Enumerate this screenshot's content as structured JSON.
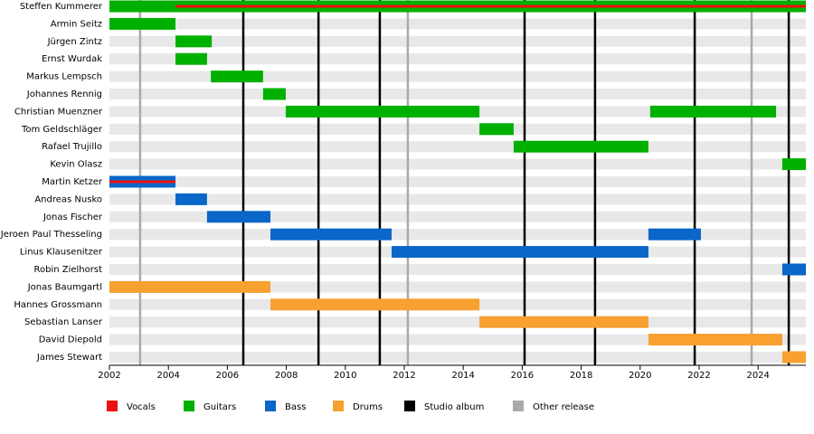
{
  "chart_data": {
    "type": "timeline",
    "xlim": [
      2002,
      2025.62
    ],
    "xticks": [
      2002,
      2004,
      2006,
      2008,
      2010,
      2012,
      2014,
      2016,
      2018,
      2020,
      2022,
      2024
    ],
    "legend": [
      {
        "name": "Vocals",
        "color": "#ee1111"
      },
      {
        "name": "Guitars",
        "color": "#00b000"
      },
      {
        "name": "Bass",
        "color": "#0a66c8"
      },
      {
        "name": "Drums",
        "color": "#f8a030"
      }
    ],
    "events": [
      {
        "name": "Studio album",
        "color": "#000000",
        "years": [
          2006.54,
          2009.09,
          2011.17,
          2016.08,
          2018.47,
          2021.85,
          2025.04
        ]
      },
      {
        "name": "Other release",
        "color": "#aaaaaa",
        "years": [
          2003.04,
          2012.12,
          2023.78
        ]
      }
    ],
    "members": [
      {
        "name": "Steffen Kummerer",
        "spans": [
          {
            "role": 1,
            "start": 2002,
            "end": 2025.62
          },
          {
            "role": 0,
            "start": 2004.24,
            "end": 2025.62
          }
        ]
      },
      {
        "name": "Armin Seitz",
        "spans": [
          {
            "role": 1,
            "start": 2002,
            "end": 2004.24
          }
        ]
      },
      {
        "name": "Jürgen Zintz",
        "spans": [
          {
            "role": 1,
            "start": 2004.24,
            "end": 2005.47
          }
        ]
      },
      {
        "name": "Ernst Wurdak",
        "spans": [
          {
            "role": 1,
            "start": 2004.24,
            "end": 2005.31
          }
        ]
      },
      {
        "name": "Markus Lempsch",
        "spans": [
          {
            "role": 1,
            "start": 2005.44,
            "end": 2007.21
          }
        ]
      },
      {
        "name": "Johannes Rennig",
        "spans": [
          {
            "role": 1,
            "start": 2007.21,
            "end": 2007.98
          }
        ]
      },
      {
        "name": "Christian Muenzner",
        "spans": [
          {
            "role": 1,
            "start": 2007.98,
            "end": 2014.55
          },
          {
            "role": 1,
            "start": 2020.34,
            "end": 2024.61
          }
        ]
      },
      {
        "name": "Tom Geldschläger",
        "spans": [
          {
            "role": 1,
            "start": 2014.55,
            "end": 2015.71
          }
        ]
      },
      {
        "name": "Rafael Trujillo",
        "spans": [
          {
            "role": 1,
            "start": 2015.71,
            "end": 2020.28
          }
        ]
      },
      {
        "name": "Kevin Olasz",
        "spans": [
          {
            "role": 1,
            "start": 2024.82,
            "end": 2025.62
          }
        ]
      },
      {
        "name": "Martin Ketzer",
        "spans": [
          {
            "role": 2,
            "start": 2002,
            "end": 2004.24
          },
          {
            "role": 0,
            "start": 2002,
            "end": 2004.24
          }
        ]
      },
      {
        "name": "Andreas Nusko",
        "spans": [
          {
            "role": 2,
            "start": 2004.24,
            "end": 2005.31
          }
        ]
      },
      {
        "name": "Jonas Fischer",
        "spans": [
          {
            "role": 2,
            "start": 2005.31,
            "end": 2007.46
          }
        ]
      },
      {
        "name": "Jeroen Paul Thesseling",
        "spans": [
          {
            "role": 2,
            "start": 2007.46,
            "end": 2011.57
          },
          {
            "role": 2,
            "start": 2020.28,
            "end": 2022.06
          }
        ]
      },
      {
        "name": "Linus Klausenitzer",
        "spans": [
          {
            "role": 2,
            "start": 2011.57,
            "end": 2020.28
          }
        ]
      },
      {
        "name": "Robin Zielhorst",
        "spans": [
          {
            "role": 2,
            "start": 2024.82,
            "end": 2025.62
          }
        ]
      },
      {
        "name": "Jonas Baumgartl",
        "spans": [
          {
            "role": 3,
            "start": 2002,
            "end": 2007.46
          }
        ]
      },
      {
        "name": "Hannes Grossmann",
        "spans": [
          {
            "role": 3,
            "start": 2007.46,
            "end": 2014.55
          }
        ]
      },
      {
        "name": "Sebastian Lanser",
        "spans": [
          {
            "role": 3,
            "start": 2014.55,
            "end": 2020.28
          }
        ]
      },
      {
        "name": "David Diepold",
        "spans": [
          {
            "role": 3,
            "start": 2020.28,
            "end": 2024.82
          }
        ]
      },
      {
        "name": "James Stewart",
        "spans": [
          {
            "role": 3,
            "start": 2024.82,
            "end": 2025.62
          }
        ]
      }
    ]
  }
}
